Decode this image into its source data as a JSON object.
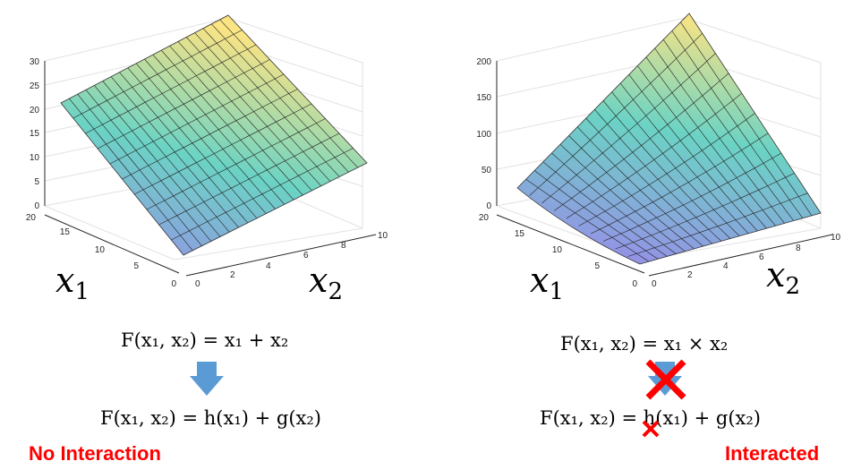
{
  "left_panel": {
    "z_ticks": [
      "30",
      "25",
      "20",
      "15",
      "10",
      "5",
      "0"
    ],
    "x1_ticks": [
      "20",
      "15",
      "10",
      "5",
      "0"
    ],
    "x2_ticks": [
      "2",
      "4",
      "6",
      "8",
      "10"
    ],
    "x1_label": "x",
    "x1_sub": "1",
    "x2_label": "x",
    "x2_sub": "2",
    "formula_top": "F(x₁, x₂) = x₁ + x₂",
    "formula_bottom": "F(x₁, x₂) = h(x₁) + g(x₂)",
    "verdict": "No Interaction"
  },
  "right_panel": {
    "z_ticks": [
      "200",
      "150",
      "100",
      "50",
      "0"
    ],
    "x1_ticks": [
      "20",
      "15",
      "10",
      "5",
      "0"
    ],
    "x2_ticks": [
      "2",
      "4",
      "6",
      "8",
      "10"
    ],
    "x1_label": "x",
    "x1_sub": "1",
    "x2_label": "x",
    "x2_sub": "2",
    "formula_top": "F(x₁, x₂) = x₁ × x₂",
    "formula_bottom": "F(x₁, x₂) = h(x₁) + g(x₂)",
    "verdict": "Interacted"
  },
  "colors": {
    "arrow": "#5b9bd5",
    "cross": "#ff0000",
    "surface_low": "#8e86e6",
    "surface_mid": "#5fd0c0",
    "surface_high": "#fbe27a"
  }
}
